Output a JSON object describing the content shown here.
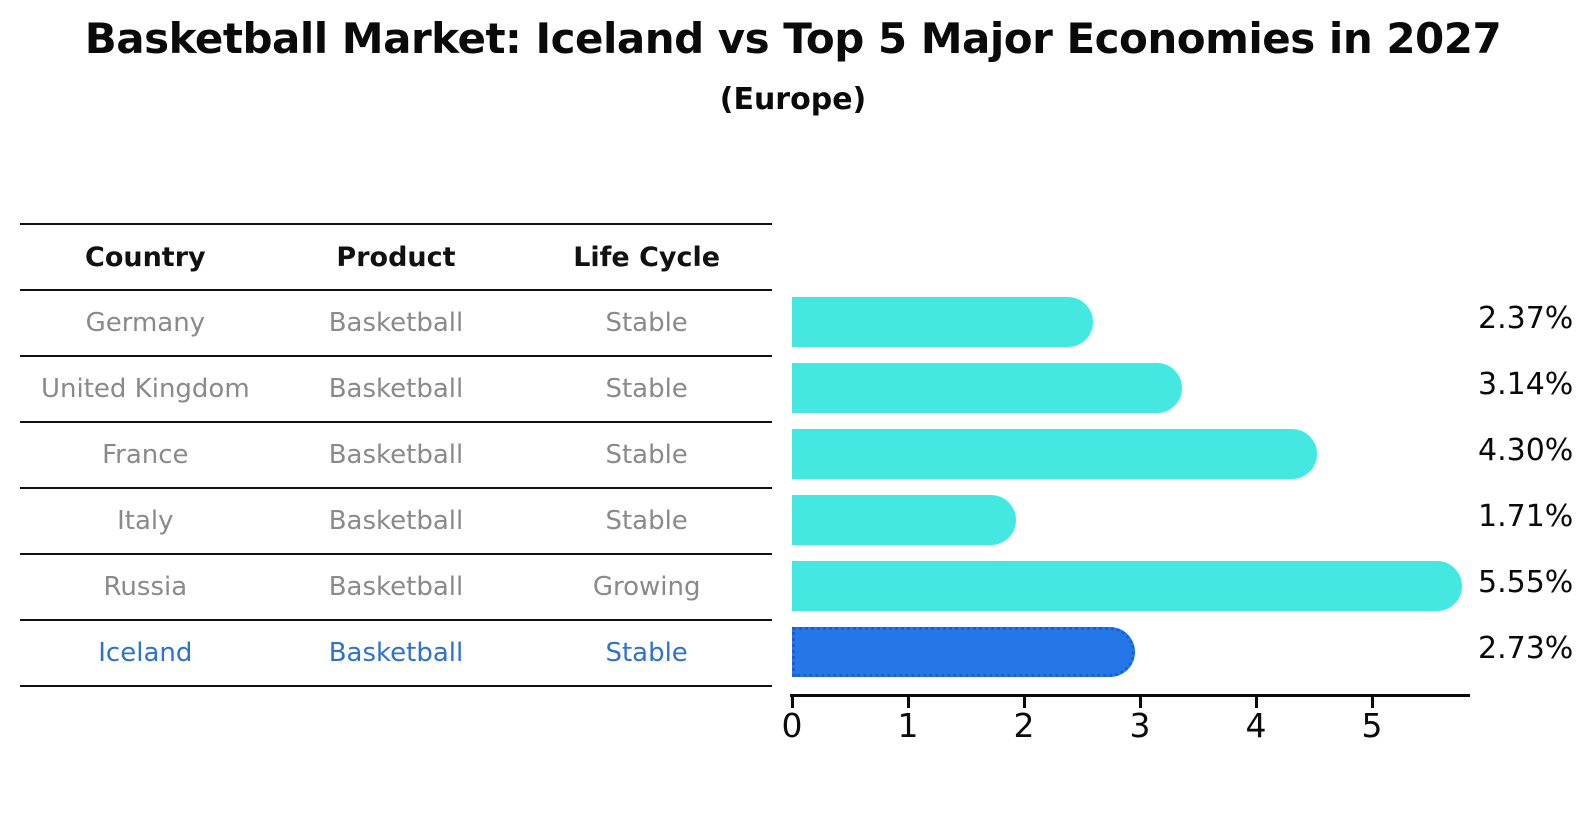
{
  "table": {
    "columns": [
      "Country",
      "Product",
      "Life Cycle"
    ],
    "rows": [
      {
        "country": "Germany",
        "product": "Basketball",
        "life_cycle": "Stable"
      },
      {
        "country": "United Kingdom",
        "product": "Basketball",
        "life_cycle": "Stable"
      },
      {
        "country": "France",
        "product": "Basketball",
        "life_cycle": "Stable"
      },
      {
        "country": "Italy",
        "product": "Basketball",
        "life_cycle": "Stable"
      },
      {
        "country": "Russia",
        "product": "Basketball",
        "life_cycle": "Growing"
      },
      {
        "country": "Iceland",
        "product": "Basketball",
        "life_cycle": "Stable"
      }
    ],
    "text_color": "#8a8a8a",
    "highlight_text_color": "#2e72cc"
  },
  "chart_data": {
    "type": "bar",
    "orientation": "horizontal",
    "title": "Basketball Market: Iceland vs Top 5 Major Economies in 2027",
    "subtitle": "(Europe)",
    "categories": [
      "Germany",
      "United Kingdom",
      "France",
      "Italy",
      "Russia",
      "Iceland"
    ],
    "values": [
      2.37,
      3.14,
      4.3,
      1.71,
      5.55,
      2.73
    ],
    "value_labels": [
      "2.37%",
      "3.14%",
      "4.30%",
      "1.71%",
      "5.55%",
      "2.73%"
    ],
    "unit": "%",
    "x_ticks": [
      "0",
      "1",
      "2",
      "3",
      "4",
      "5"
    ],
    "xlim": [
      0,
      5.84
    ],
    "grid": false,
    "legend": false,
    "bar_color": "#45E8E0",
    "highlight": {
      "index": 5,
      "fill": "#2577E8",
      "border": "#1B5FD8"
    },
    "axis_color": "#0a0a0a",
    "label_color": "#0a0a0a"
  }
}
